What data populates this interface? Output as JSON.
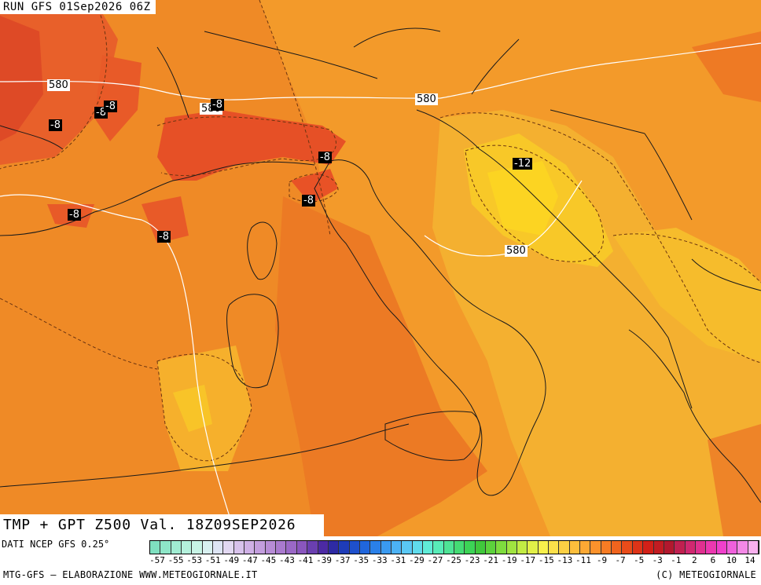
{
  "header": {
    "run_text": "RUN GFS 01Sep2026 06Z"
  },
  "title": {
    "text": "TMP + GPT Z500 Val. 18Z09SEP2026"
  },
  "footer": {
    "data_source": "DATI NCEP GFS 0.25°",
    "credit_left": "MTG-GFS – ELABORAZIONE WWW.METEOGIORNALE.IT",
    "credit_right": "(C) METEOGIORNALE"
  },
  "map": {
    "geopotential_labels": [
      "580",
      "580",
      "580",
      "580"
    ],
    "temperature_labels": [
      "-8",
      "-8",
      "-8",
      "-8",
      "-8",
      "-8",
      "-8",
      "-8",
      "-12"
    ]
  },
  "colorbar": {
    "labels": [
      "-57",
      "-55",
      "-53",
      "-51",
      "-49",
      "-47",
      "-45",
      "-43",
      "-41",
      "-39",
      "-37",
      "-35",
      "-33",
      "-31",
      "-29",
      "-27",
      "-25",
      "-23",
      "-21",
      "-19",
      "-17",
      "-15",
      "-13",
      "-11",
      "-9",
      "-7",
      "-5",
      "-3",
      "-1",
      "2",
      "6",
      "10",
      "14"
    ],
    "colors": [
      "#7fe0c0",
      "#8ee6c8",
      "#a0ecd2",
      "#b4f0dc",
      "#c8f4e6",
      "#d8f0f0",
      "#dde4f4",
      "#e2d8f2",
      "#d8c2ec",
      "#cfb0e6",
      "#c39ede",
      "#b78cd6",
      "#a97ace",
      "#9a68c6",
      "#8a56be",
      "#6a3fb0",
      "#4c2aa4",
      "#2e2aa4",
      "#1e3cb8",
      "#1e50cc",
      "#2066dc",
      "#2a80e8",
      "#3a9af0",
      "#4cb2f4",
      "#5ac8f4",
      "#60dcec",
      "#60ecd8",
      "#58ecb8",
      "#4ee496",
      "#44dc74",
      "#3cd456",
      "#40c83c",
      "#5cd23c",
      "#7edc3e",
      "#a0e440",
      "#c2ec44",
      "#e2f048",
      "#f8f04c",
      "#fce04a",
      "#fcd044",
      "#fcbe3c",
      "#fca834",
      "#fc922c",
      "#f87c24",
      "#f0641e",
      "#e84c1a",
      "#de3418",
      "#d22018",
      "#c21c22",
      "#b2182e",
      "#c02050",
      "#d02870",
      "#e03090",
      "#ec38b0",
      "#f040cc",
      "#f060dc",
      "#f488e6",
      "#f8b0ee"
    ]
  }
}
